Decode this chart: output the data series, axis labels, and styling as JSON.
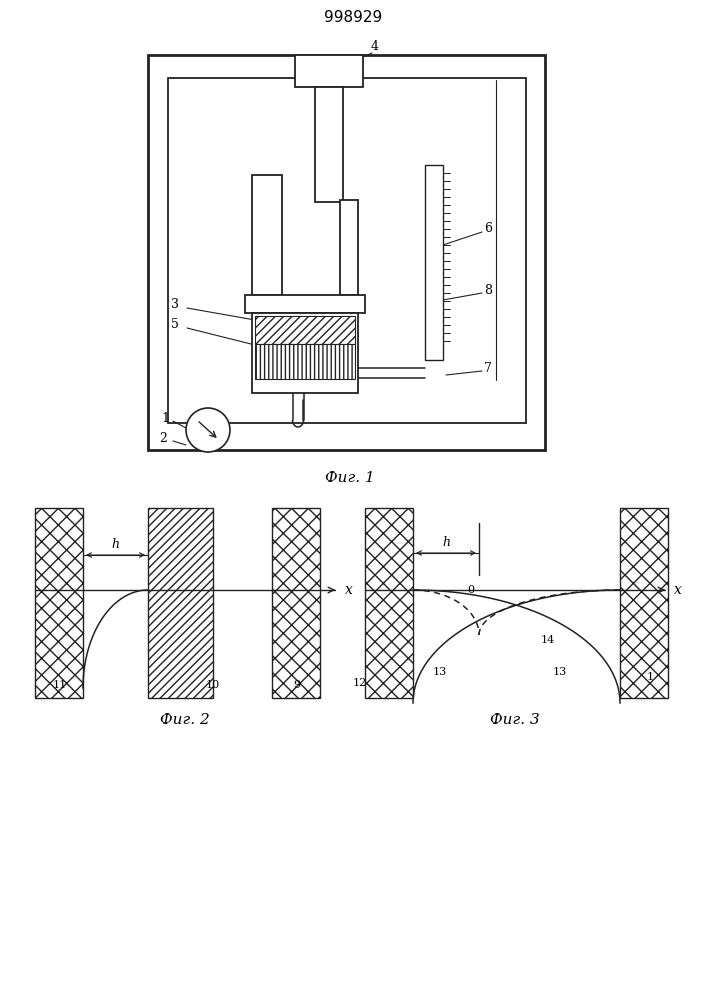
{
  "title": "998929",
  "fig1_label": "Фиг. 1",
  "fig2_label": "Фиг. 2",
  "fig3_label": "Фиг. 3",
  "bg_color": "#ffffff",
  "line_color": "#222222"
}
